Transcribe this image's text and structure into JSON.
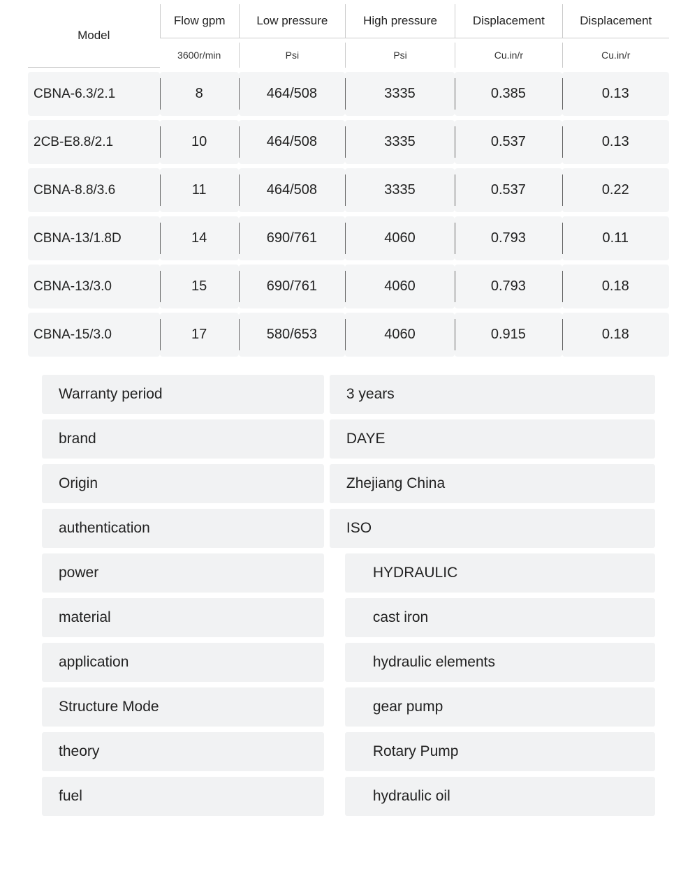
{
  "table": {
    "header_top": [
      "Model",
      "Flow gpm",
      "Low pressure",
      "High pressure",
      "Displacement",
      "Displacement"
    ],
    "header_sub": [
      "",
      "3600r/min",
      "Psi",
      "Psi",
      "Cu.in/r",
      "Cu.in/r"
    ],
    "rows": [
      {
        "model": "CBNA-6.3/2.1",
        "flow": "8",
        "low": "464/508",
        "high": "3335",
        "d1": "0.385",
        "d2": "0.13"
      },
      {
        "model": "2CB-E8.8/2.1",
        "flow": "10",
        "low": "464/508",
        "high": "3335",
        "d1": "0.537",
        "d2": "0.13"
      },
      {
        "model": "CBNA-8.8/3.6",
        "flow": "11",
        "low": "464/508",
        "high": "3335",
        "d1": "0.537",
        "d2": "0.22"
      },
      {
        "model": "CBNA-13/1.8D",
        "flow": "14",
        "low": "690/761",
        "high": "4060",
        "d1": "0.793",
        "d2": "0.11"
      },
      {
        "model": "CBNA-13/3.0",
        "flow": "15",
        "low": "690/761",
        "high": "4060",
        "d1": "0.793",
        "d2": "0.18"
      },
      {
        "model": "CBNA-15/3.0",
        "flow": "17",
        "low": "580/653",
        "high": "4060",
        "d1": "0.915",
        "d2": "0.18"
      }
    ]
  },
  "attributes": [
    {
      "label": "Warranty period",
      "value": "3 years",
      "indent": false
    },
    {
      "label": "brand",
      "value": "DAYE",
      "indent": false
    },
    {
      "label": "Origin",
      "value": "Zhejiang China",
      "indent": false
    },
    {
      "label": "authentication",
      "value": "ISO",
      "indent": false
    },
    {
      "label": "power",
      "value": "HYDRAULIC",
      "indent": true
    },
    {
      "label": "material",
      "value": "cast iron",
      "indent": true
    },
    {
      "label": "application",
      "value": "hydraulic elements",
      "indent": true
    },
    {
      "label": "Structure Mode",
      "value": "gear pump",
      "indent": true
    },
    {
      "label": "theory",
      "value": "Rotary Pump",
      "indent": true
    },
    {
      "label": "fuel",
      "value": "hydraulic oil",
      "indent": true
    }
  ],
  "style": {
    "row_bg": "#f4f5f6",
    "attr_bg": "#f1f2f3",
    "divider": "#666666",
    "header_border": "#cccccc",
    "text_color": "#222222",
    "header_font_size": 17,
    "subheader_font_size": 14,
    "cell_font_size": 20,
    "attr_font_size": 21
  }
}
